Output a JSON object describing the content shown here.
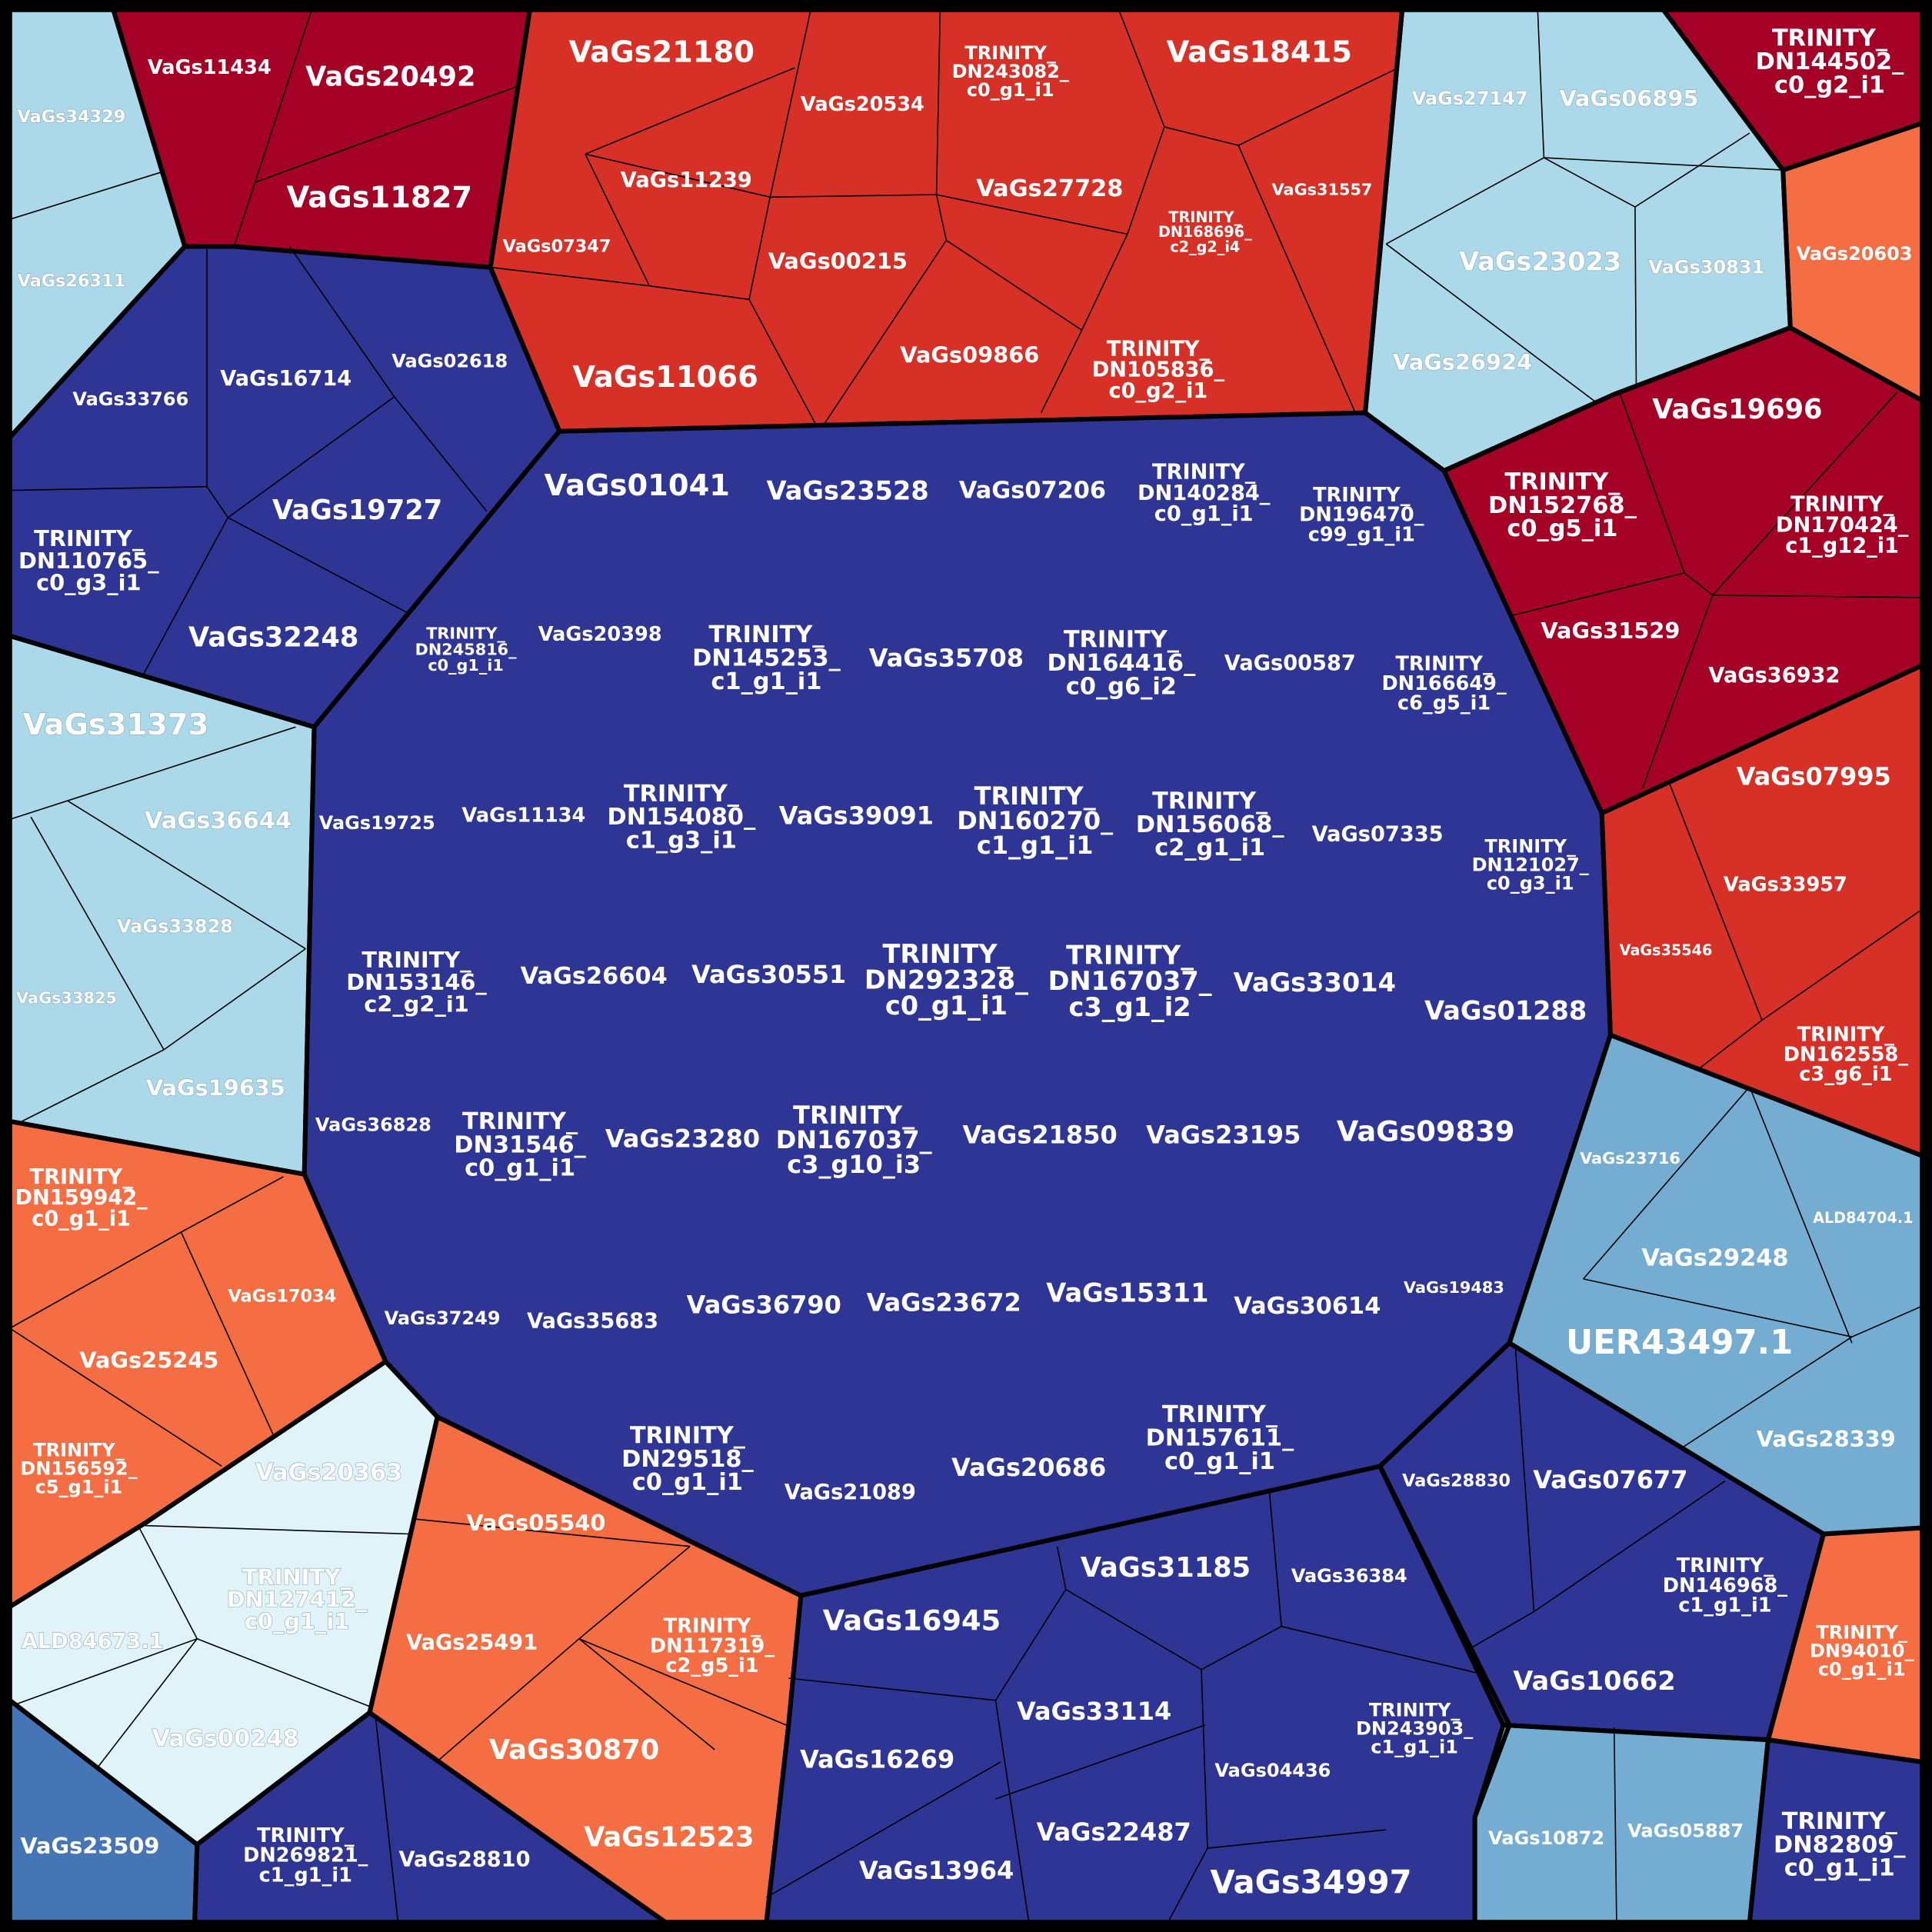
{
  "chart_data": {
    "type": "voronoi-treemap",
    "color_scale": {
      "dark_red": "#a50026",
      "red": "#d73027",
      "orange": "#f46d43",
      "very_light_blue": "#e0f3f8",
      "light_blue": "#abd9e9",
      "mid_blue": "#74add1",
      "steel_blue": "#4575b4",
      "navy": "#2f3594"
    },
    "groups": [
      {
        "id": "g1",
        "color": "light_blue",
        "cells": [
          "VaGs34329",
          "VaGs26311"
        ]
      },
      {
        "id": "g2",
        "color": "dark_red",
        "cells": [
          "VaGs11434",
          "VaGs20492",
          "VaGs11827"
        ]
      },
      {
        "id": "g3",
        "color": "red",
        "cells": [
          "VaGs21180",
          "VaGs20534",
          "TRINITY_DN243082_c0_g1_i1",
          "VaGs18415",
          "VaGs11239",
          "VaGs27728",
          "VaGs31557",
          "TRINITY_DN168696_c2_g2_i4",
          "VaGs07347",
          "VaGs00215",
          "VaGs09866",
          "TRINITY_DN105836_c0_g2_i1",
          "VaGs11066"
        ]
      },
      {
        "id": "g4",
        "color": "light_blue",
        "cells": [
          "VaGs27147",
          "VaGs06895",
          "VaGs23023",
          "VaGs30831",
          "VaGs26924"
        ]
      },
      {
        "id": "g5",
        "color": "dark_red",
        "cells": [
          "TRINITY_DN144502_c0_g2_i1"
        ]
      },
      {
        "id": "g6",
        "color": "orange",
        "cells": [
          "VaGs20603"
        ]
      },
      {
        "id": "g7",
        "color": "navy",
        "cells": [
          "VaGs33766",
          "VaGs16714",
          "VaGs02618",
          "VaGs19727",
          "TRINITY_DN110765_c0_g3_i1",
          "VaGs32248"
        ]
      },
      {
        "id": "g8",
        "color": "dark_red",
        "cells": [
          "VaGs19696",
          "TRINITY_DN152768_c0_g5_i1",
          "TRINITY_DN170424_c1_g12_i1",
          "VaGs31529",
          "VaGs36932"
        ]
      },
      {
        "id": "g9",
        "color": "light_blue",
        "cells": [
          "VaGs31373",
          "VaGs36644",
          "VaGs33828",
          "VaGs33825",
          "VaGs19635"
        ]
      },
      {
        "id": "g10",
        "color": "navy",
        "cells": [
          "VaGs01041",
          "VaGs23528",
          "VaGs07206",
          "TRINITY_DN140284_c0_g1_i1",
          "TRINITY_DN196470_c99_g1_i1",
          "TRINITY_DN245816_c0_g1_i1",
          "VaGs20398",
          "TRINITY_DN145253_c1_g1_i1",
          "VaGs35708",
          "TRINITY_DN164416_c0_g6_i2",
          "VaGs00587",
          "TRINITY_DN166649_c6_g5_i1",
          "VaGs19725",
          "VaGs11134",
          "TRINITY_DN154080_c1_g3_i1",
          "VaGs39091",
          "TRINITY_DN160270_c1_g1_i1",
          "TRINITY_DN156068_c2_g1_i1",
          "VaGs07335",
          "TRINITY_DN121027_c0_g3_i1",
          "TRINITY_DN153146_c2_g2_i1",
          "VaGs26604",
          "VaGs30551",
          "TRINITY_DN292328_c0_g1_i1",
          "TRINITY_DN167037_c3_g1_i2",
          "VaGs33014",
          "VaGs01288",
          "VaGs36828",
          "TRINITY_DN31546_c0_g1_i1",
          "VaGs23280",
          "TRINITY_DN167037_c3_g10_i3",
          "VaGs21850",
          "VaGs23195",
          "VaGs09839",
          "VaGs37249",
          "VaGs35683",
          "VaGs36790",
          "VaGs23672",
          "VaGs15311",
          "VaGs30614",
          "VaGs19483",
          "TRINITY_DN29518_c0_g1_i1",
          "VaGs21089",
          "VaGs20686",
          "TRINITY_DN157611_c0_g1_i1"
        ]
      },
      {
        "id": "g11",
        "color": "red",
        "cells": [
          "VaGs07995",
          "VaGs33957",
          "VaGs35546",
          "TRINITY_DN162558_c3_g6_i1"
        ]
      },
      {
        "id": "g12",
        "color": "orange",
        "cells": [
          "TRINITY_DN159942_c0_g1_i1",
          "VaGs17034",
          "VaGs25245",
          "TRINITY_DN156592_c5_g1_i1"
        ]
      },
      {
        "id": "g13",
        "color": "mid_blue",
        "cells": [
          "VaGs23716",
          "ALD84704.1",
          "VaGs29248",
          "UER43497.1",
          "VaGs28339"
        ]
      },
      {
        "id": "g14",
        "color": "very_light_blue",
        "cells": [
          "VaGs20363",
          "TRINITY_DN127412_c0_g1_i1",
          "ALD84673.1",
          "VaGs00248"
        ]
      },
      {
        "id": "g15",
        "color": "orange",
        "cells": [
          "VaGs05540",
          "VaGs25491",
          "TRINITY_DN117319_c2_g5_i1",
          "VaGs30870",
          "VaGs12523"
        ]
      },
      {
        "id": "g16",
        "color": "navy",
        "cells": [
          "VaGs16945",
          "VaGs31185",
          "VaGs36384",
          "VaGs33114",
          "VaGs16269",
          "VaGs04436",
          "TRINITY_DN243903_c1_g1_i1",
          "VaGs22487",
          "VaGs13964",
          "VaGs34997"
        ]
      },
      {
        "id": "g17",
        "color": "navy",
        "cells": [
          "VaGs28830",
          "VaGs07677",
          "TRINITY_DN146968_c1_g1_i1",
          "VaGs10662"
        ]
      },
      {
        "id": "g18",
        "color": "orange",
        "cells": [
          "TRINITY_DN94010_c0_g1_i1"
        ]
      },
      {
        "id": "g19",
        "color": "mid_blue",
        "cells": [
          "VaGs10872",
          "VaGs05887"
        ]
      },
      {
        "id": "g20",
        "color": "navy",
        "cells": [
          "TRINITY_DN82809_c0_g1_i1"
        ]
      },
      {
        "id": "g21",
        "color": "steel_blue",
        "cells": [
          "VaGs23509"
        ]
      },
      {
        "id": "g22",
        "color": "navy",
        "cells": [
          "TRINITY_DN269821_c1_g1_i1",
          "VaGs28810"
        ]
      }
    ]
  }
}
